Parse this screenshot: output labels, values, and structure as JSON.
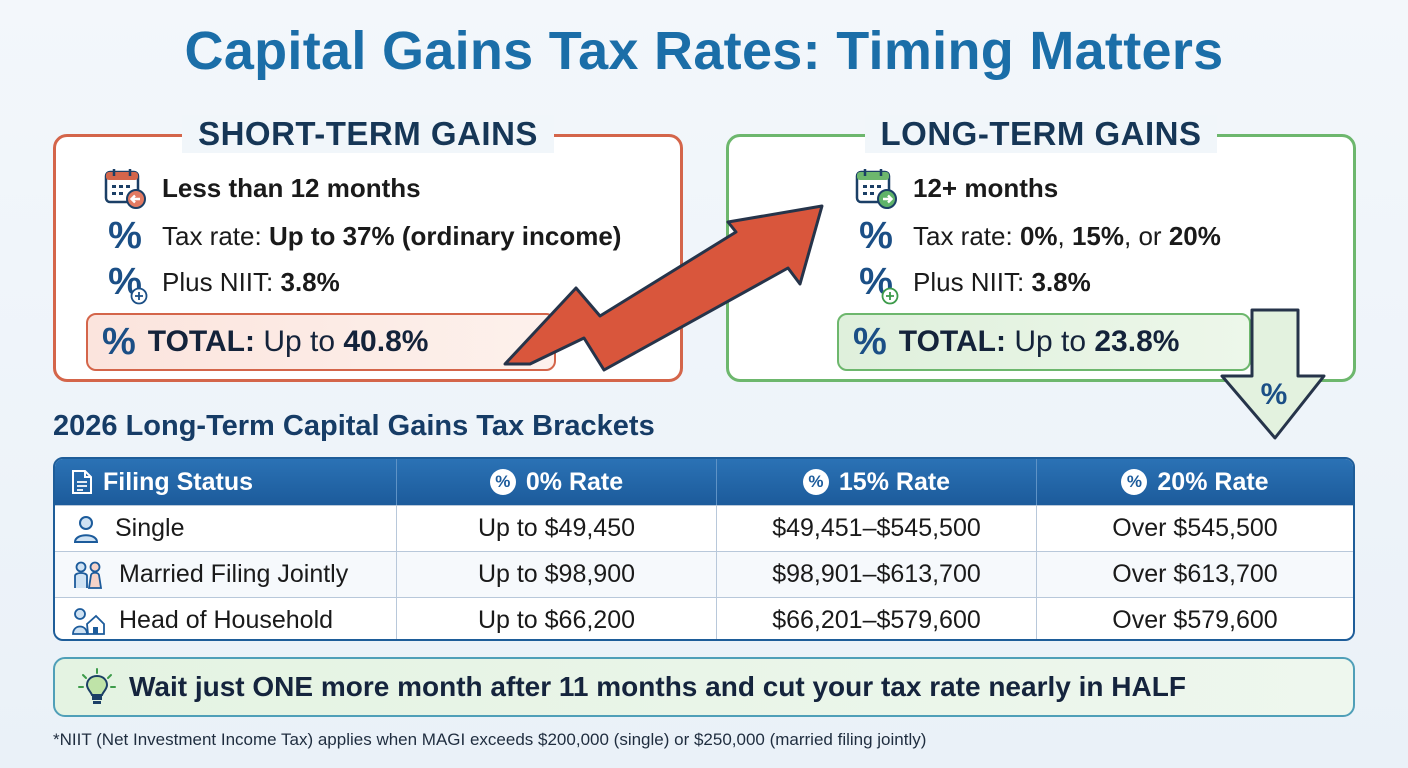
{
  "title": "Capital Gains Tax Rates: Timing Matters",
  "short_term": {
    "heading": "SHORT-TERM GAINS",
    "holding": "Less than 12 months",
    "rate_label": "Tax rate: ",
    "rate_value": "Up to 37% (ordinary income)",
    "niit_label": "Plus NIIT: ",
    "niit_value": "3.8%",
    "total_label": "TOTAL:",
    "total_prefix": " Up to ",
    "total_value": "40.8%"
  },
  "long_term": {
    "heading": "LONG-TERM GAINS",
    "holding": "12+ months",
    "rate_label": "Tax rate: ",
    "rate_values": [
      "0%",
      "15%",
      "20%"
    ],
    "rate_sep1": ", ",
    "rate_sep2": ", or ",
    "niit_label": "Plus NIIT: ",
    "niit_value": "3.8%",
    "total_label": "TOTAL:",
    "total_prefix": " Up to ",
    "total_value": "23.8%"
  },
  "brackets": {
    "heading": "2026 Long-Term Capital Gains Tax Brackets",
    "columns": [
      "Filing Status",
      "0% Rate",
      "15% Rate",
      "20% Rate"
    ],
    "rows": [
      {
        "status": "Single",
        "r0": "Up to $49,450",
        "r15": "$49,451–$545,500",
        "r20": "Over $545,500"
      },
      {
        "status": "Married Filing Jointly",
        "r0": "Up to $98,900",
        "r15": "$98,901–$613,700",
        "r20": "Over $613,700"
      },
      {
        "status": "Head of Household",
        "r0": "Up to $66,200",
        "r15": "$66,201–$579,600",
        "r20": "Over $579,600"
      }
    ]
  },
  "tip": "Wait just ONE more month after 11 months and cut your tax rate nearly in HALF",
  "footnote": "*NIIT (Net Investment Income Tax) applies when MAGI exceeds $200,000 (single) or $250,000 (married filing jointly)",
  "pct_glyph": "%",
  "colors": {
    "title": "#1b6ea8",
    "short_accent": "#d4654a",
    "long_accent": "#6db76d",
    "table_header": "#1c5b9b",
    "arrow_up": "#d9563c"
  }
}
